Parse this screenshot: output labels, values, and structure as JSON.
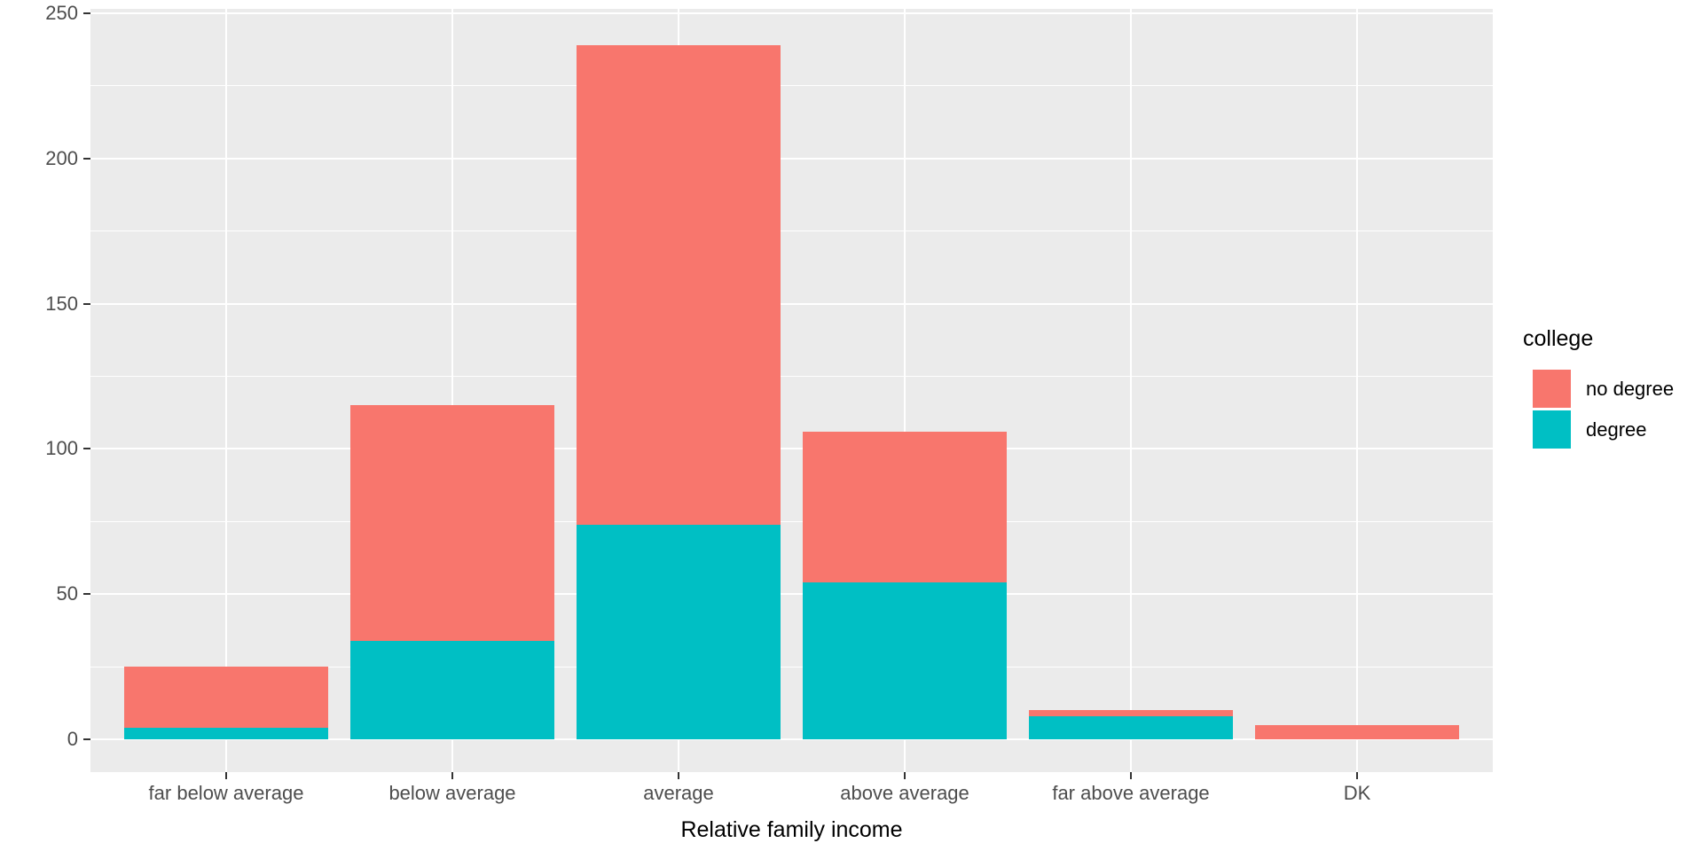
{
  "chart_data": {
    "type": "bar",
    "stacked": true,
    "title": "",
    "xlabel": "Relative family income",
    "ylabel": "",
    "categories": [
      "far below average",
      "below average",
      "average",
      "above average",
      "far above average",
      "DK"
    ],
    "series": [
      {
        "name": "no degree",
        "color": "#F8766D",
        "values": [
          21,
          81,
          165,
          52,
          2,
          5
        ]
      },
      {
        "name": "degree",
        "color": "#00BFC4",
        "values": [
          4,
          34,
          74,
          54,
          8,
          0
        ]
      }
    ],
    "totals": [
      25,
      115,
      239,
      106,
      10,
      5
    ],
    "stack_bottom_to_top": [
      "degree",
      "no degree"
    ],
    "y_ticks": [
      0,
      50,
      100,
      150,
      200,
      250
    ],
    "y_minor": [
      25,
      75,
      125,
      175,
      225
    ],
    "ylim": [
      -12,
      251
    ],
    "grid": true,
    "legend": {
      "title": "college",
      "position": "right"
    },
    "colors": {
      "panel_background": "#EBEBEB",
      "gridline": "#FFFFFF",
      "axis_text": "#4D4D4D",
      "axis_title": "#000000",
      "tick_mark": "#333333"
    }
  }
}
